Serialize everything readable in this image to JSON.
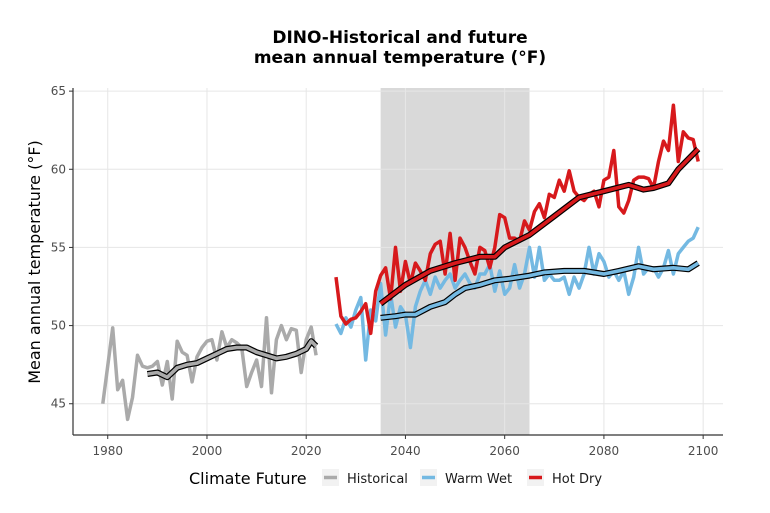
{
  "chart_data": {
    "type": "line",
    "title_line1": "DINO-Historical and future",
    "title_line2": "mean annual temperature (°F)",
    "xlabel": "",
    "ylabel": "Mean annual temperature (°F)",
    "xlim": [
      1973,
      2104
    ],
    "ylim": [
      43,
      65.2
    ],
    "x_ticks": [
      1980,
      2000,
      2020,
      2040,
      2060,
      2080,
      2100
    ],
    "x_tick_labels": [
      "1980",
      "2000",
      "2020",
      "2040",
      "2060",
      "2080",
      "2100"
    ],
    "y_ticks": [
      45,
      50,
      55,
      60,
      65
    ],
    "y_tick_labels": [
      "45",
      "50",
      "55",
      "60",
      "65"
    ],
    "grid": true,
    "shaded_period": [
      2035,
      2065
    ],
    "shade_color": "#d9d9d9",
    "legend": {
      "title": "Climate Future",
      "position": "bottom",
      "entries": [
        "Historical",
        "Warm Wet",
        "Hot Dry"
      ]
    },
    "series": [
      {
        "name": "Historical",
        "color": "#aaaaaa",
        "x": [
          1979,
          1980,
          1981,
          1982,
          1983,
          1984,
          1985,
          1986,
          1987,
          1988,
          1989,
          1990,
          1991,
          1992,
          1993,
          1994,
          1995,
          1996,
          1997,
          1998,
          1999,
          2000,
          2001,
          2002,
          2003,
          2004,
          2005,
          2006,
          2007,
          2008,
          2009,
          2010,
          2011,
          2012,
          2013,
          2014,
          2015,
          2016,
          2017,
          2018,
          2019,
          2020,
          2021,
          2022
        ],
        "values": [
          45.0,
          47.4,
          49.85,
          45.9,
          46.5,
          44.0,
          45.4,
          48.1,
          47.4,
          47.3,
          47.4,
          47.7,
          46.2,
          47.7,
          45.3,
          49.0,
          48.3,
          48.1,
          46.4,
          48.0,
          48.6,
          49.0,
          49.1,
          47.8,
          49.6,
          48.6,
          49.1,
          48.9,
          48.6,
          46.1,
          47.0,
          47.8,
          46.1,
          50.5,
          45.7,
          49.1,
          50.0,
          49.1,
          49.8,
          49.7,
          47.0,
          49.1,
          49.9,
          48.1
        ],
        "smooth_x": [
          1988,
          1990,
          1992,
          1994,
          1996,
          1998,
          2000,
          2002,
          2004,
          2006,
          2008,
          2010,
          2012,
          2014,
          2016,
          2018,
          2020,
          2021,
          2022
        ],
        "smooth_values": [
          46.9,
          47.0,
          46.7,
          47.3,
          47.5,
          47.6,
          47.9,
          48.2,
          48.5,
          48.6,
          48.6,
          48.3,
          48.1,
          47.9,
          48.0,
          48.2,
          48.5,
          49.0,
          48.7
        ]
      },
      {
        "name": "Warm Wet",
        "color": "#74b9e2",
        "x": [
          2026,
          2027,
          2028,
          2029,
          2030,
          2031,
          2032,
          2033,
          2034,
          2035,
          2036,
          2037,
          2038,
          2039,
          2040,
          2041,
          2042,
          2043,
          2044,
          2045,
          2046,
          2047,
          2048,
          2049,
          2050,
          2051,
          2052,
          2053,
          2054,
          2055,
          2056,
          2057,
          2058,
          2059,
          2060,
          2061,
          2062,
          2063,
          2064,
          2065,
          2066,
          2067,
          2068,
          2069,
          2070,
          2071,
          2072,
          2073,
          2074,
          2075,
          2076,
          2077,
          2078,
          2079,
          2080,
          2081,
          2082,
          2083,
          2084,
          2085,
          2086,
          2087,
          2088,
          2089,
          2090,
          2091,
          2092,
          2093,
          2094,
          2095,
          2096,
          2097,
          2098,
          2099
        ],
        "values": [
          50.1,
          49.5,
          50.5,
          49.9,
          51.0,
          51.8,
          47.8,
          51.0,
          50.3,
          52.7,
          49.4,
          52.0,
          49.9,
          51.2,
          50.7,
          48.6,
          51.2,
          52.2,
          52.9,
          52.0,
          53.1,
          52.4,
          52.9,
          53.3,
          52.4,
          52.9,
          53.3,
          52.7,
          52.4,
          53.3,
          53.3,
          53.9,
          52.2,
          53.5,
          52.0,
          52.4,
          53.9,
          52.4,
          53.3,
          55.0,
          53.1,
          55.0,
          52.9,
          53.3,
          52.9,
          52.9,
          53.1,
          52.0,
          53.1,
          52.4,
          53.3,
          55.0,
          53.3,
          54.6,
          54.1,
          53.1,
          53.5,
          52.9,
          53.5,
          52.0,
          53.1,
          55.0,
          53.3,
          53.7,
          53.7,
          53.1,
          53.7,
          54.8,
          53.3,
          54.6,
          55.0,
          55.4,
          55.6,
          56.3
        ],
        "smooth_x": [
          2035,
          2038,
          2040,
          2042,
          2045,
          2048,
          2050,
          2052,
          2055,
          2058,
          2061,
          2065,
          2068,
          2072,
          2076,
          2080,
          2083,
          2087,
          2090,
          2094,
          2097,
          2099
        ],
        "smooth_values": [
          50.5,
          50.6,
          50.7,
          50.7,
          51.2,
          51.5,
          52.0,
          52.4,
          52.6,
          52.9,
          53.0,
          53.2,
          53.4,
          53.5,
          53.5,
          53.3,
          53.5,
          53.8,
          53.6,
          53.7,
          53.6,
          54.0
        ]
      },
      {
        "name": "Hot Dry",
        "color": "#d7191c",
        "x": [
          2026,
          2027,
          2028,
          2029,
          2030,
          2031,
          2032,
          2033,
          2034,
          2035,
          2036,
          2037,
          2038,
          2039,
          2040,
          2041,
          2042,
          2043,
          2044,
          2045,
          2046,
          2047,
          2048,
          2049,
          2050,
          2051,
          2052,
          2053,
          2054,
          2055,
          2056,
          2057,
          2058,
          2059,
          2060,
          2061,
          2062,
          2063,
          2064,
          2065,
          2066,
          2067,
          2068,
          2069,
          2070,
          2071,
          2072,
          2073,
          2074,
          2075,
          2076,
          2077,
          2078,
          2079,
          2080,
          2081,
          2082,
          2083,
          2084,
          2085,
          2086,
          2087,
          2088,
          2089,
          2090,
          2091,
          2092,
          2093,
          2094,
          2095,
          2096,
          2097,
          2098,
          2099
        ],
        "values": [
          53.1,
          50.6,
          50.1,
          50.4,
          50.5,
          50.9,
          51.4,
          49.5,
          52.2,
          53.2,
          53.7,
          51.7,
          55.0,
          52.2,
          54.1,
          52.7,
          54.0,
          53.5,
          52.9,
          54.6,
          55.2,
          55.4,
          53.3,
          55.9,
          52.9,
          55.6,
          55.0,
          54.1,
          53.3,
          55.0,
          54.8,
          53.7,
          55.0,
          57.1,
          56.9,
          55.6,
          55.6,
          55.4,
          56.7,
          56.1,
          57.3,
          57.8,
          56.9,
          58.4,
          58.2,
          59.3,
          58.6,
          59.9,
          58.6,
          58.2,
          58.0,
          58.4,
          58.6,
          57.6,
          59.3,
          59.5,
          61.2,
          57.6,
          57.2,
          58.0,
          59.3,
          59.5,
          59.5,
          59.4,
          58.8,
          60.5,
          61.8,
          61.2,
          64.1,
          60.5,
          62.4,
          62.0,
          61.9,
          60.5
        ],
        "smooth_x": [
          2035,
          2040,
          2045,
          2050,
          2055,
          2058,
          2060,
          2065,
          2070,
          2075,
          2080,
          2085,
          2088,
          2090,
          2093,
          2095,
          2099
        ],
        "smooth_values": [
          51.4,
          52.6,
          53.5,
          54.0,
          54.4,
          54.4,
          55.0,
          55.8,
          57.0,
          58.2,
          58.6,
          59.0,
          58.7,
          58.8,
          59.1,
          60.0,
          61.3
        ]
      }
    ]
  }
}
